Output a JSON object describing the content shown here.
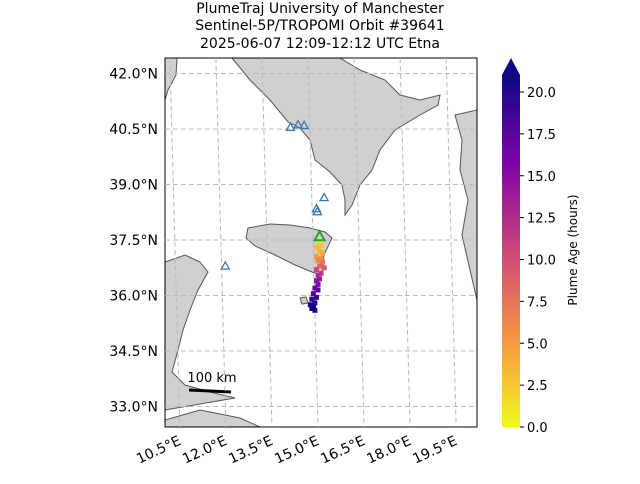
{
  "chart_data": {
    "type": "map",
    "title": [
      "PlumeTraj    University of Manchester",
      "Sentinel-5P/TROPOMI Orbit #39641",
      "2025-06-07   12:09-12:12 UTC   Etna"
    ],
    "yticks": [
      {
        "value": 42.0,
        "label": "42.0°N"
      },
      {
        "value": 40.5,
        "label": "40.5°N"
      },
      {
        "value": 39.0,
        "label": "39.0°N"
      },
      {
        "value": 37.5,
        "label": "37.5°N"
      },
      {
        "value": 36.0,
        "label": "36.0°N"
      },
      {
        "value": 34.5,
        "label": "34.5°N"
      },
      {
        "value": 33.0,
        "label": "33.0°N"
      }
    ],
    "xticks": [
      {
        "value": 10.5,
        "label": "10.5°E"
      },
      {
        "value": 12.0,
        "label": "12.0°E"
      },
      {
        "value": 13.5,
        "label": "13.5°E"
      },
      {
        "value": 15.0,
        "label": "15.0°E"
      },
      {
        "value": 16.5,
        "label": "16.5°E"
      },
      {
        "value": 18.0,
        "label": "18.0°E"
      },
      {
        "value": 19.5,
        "label": "19.5°E"
      }
    ],
    "grid": true,
    "scale_label": "100 km",
    "volcanoes": {
      "lat": [
        40.55,
        40.62,
        40.6,
        38.65,
        38.35,
        38.27,
        36.8
      ],
      "lon": [
        14.1,
        14.35,
        14.55,
        15.2,
        14.95,
        14.98,
        11.98
      ],
      "color": "#3a78b0"
    },
    "source": {
      "lat": 37.6,
      "lon": 15.05,
      "color": "#2ca02c"
    },
    "plume": {
      "lat": [
        37.45,
        37.35,
        37.3,
        37.2,
        37.15,
        37.05,
        37.0,
        36.95,
        36.9,
        36.8,
        36.75,
        36.7,
        36.6,
        36.55,
        36.45,
        36.4,
        36.3,
        36.2,
        36.15,
        36.05,
        35.95,
        35.9,
        35.8,
        35.75,
        35.7,
        35.65,
        35.6
      ],
      "lon": [
        15.05,
        15.1,
        14.95,
        15.05,
        15.15,
        14.95,
        15.1,
        15.0,
        15.15,
        15.05,
        15.2,
        14.95,
        15.1,
        15.0,
        15.05,
        14.95,
        15.0,
        14.9,
        15.0,
        14.85,
        14.95,
        14.8,
        14.9,
        14.75,
        14.85,
        14.8,
        14.9
      ],
      "age": [
        1.5,
        2.5,
        3.0,
        3.5,
        4.0,
        5.0,
        5.5,
        6.0,
        7.0,
        8.0,
        9.0,
        10.0,
        11.0,
        12.0,
        13.0,
        14.0,
        15.0,
        16.0,
        16.5,
        17.0,
        18.0,
        18.5,
        19.0,
        19.5,
        20.0,
        20.5,
        21.0
      ]
    },
    "colorbar": {
      "label": "Plume Age (hours)",
      "lim": [
        0,
        20
      ],
      "extend": "max",
      "ticks": [
        {
          "value": 0,
          "label": "0.0"
        },
        {
          "value": 2.5,
          "label": "2.5"
        },
        {
          "value": 5,
          "label": "5.0"
        },
        {
          "value": 7.5,
          "label": "7.5"
        },
        {
          "value": 10,
          "label": "10.0"
        },
        {
          "value": 12.5,
          "label": "12.5"
        },
        {
          "value": 15,
          "label": "15.0"
        },
        {
          "value": 17.5,
          "label": "17.5"
        },
        {
          "value": 20,
          "label": "20.0"
        }
      ]
    }
  }
}
